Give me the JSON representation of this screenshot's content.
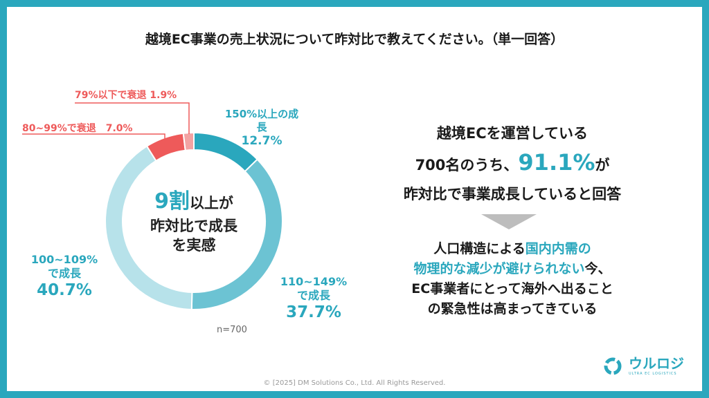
{
  "title": "越境EC事業の売上状況について昨対比で教えてください。（単一回答）",
  "chart_data": {
    "type": "pie",
    "categories": [
      "150%以上の成長",
      "110~149%で成長",
      "100~109%で成長",
      "80~99%で衰退",
      "79%以下で衰退"
    ],
    "values": [
      12.7,
      37.7,
      40.7,
      7.0,
      1.9
    ],
    "colors": [
      "#2aa7bd",
      "#6cc3d3",
      "#b7e2ea",
      "#ee5a5a",
      "#f3a3a3"
    ],
    "sample_size": "n=700"
  },
  "labels": {
    "s150_line1": "150%以上の成長",
    "s150_line2": "12.7%",
    "s110_line1": "110~149%",
    "s110_line2": "で成長",
    "s110_line3": "37.7%",
    "s100_line1": "100~109%",
    "s100_line2": "で成長",
    "s100_line3": "40.7%",
    "s80": "80~99%で衰退　7.0%",
    "s79": "79%以下で衰退  1.9%"
  },
  "center": {
    "big": "9割",
    "line1_rest": "以上が",
    "line2": "昨対比で成長",
    "line3": "を実感"
  },
  "summary": {
    "line1": "越境ECを運営している",
    "line2_pre": "700名のうち、",
    "line2_pct": "91.1%",
    "line2_post": "が",
    "line3": "昨対比で事業成長していると回答",
    "p2_line1_pre": "人口構造による",
    "p2_line1_hl": "国内内需の",
    "p2_line2_hl": "物理的な減少が避けられない",
    "p2_line2_post": "今、",
    "p2_line3": "EC事業者にとって海外へ出ること",
    "p2_line4": "の緊急性は高まってきている"
  },
  "logo": {
    "name": "ウルロジ",
    "sub": "ULTRA EC LOGISTICS"
  },
  "footer": "© [2025] DM Solutions Co., Ltd. All Rights Reserved."
}
